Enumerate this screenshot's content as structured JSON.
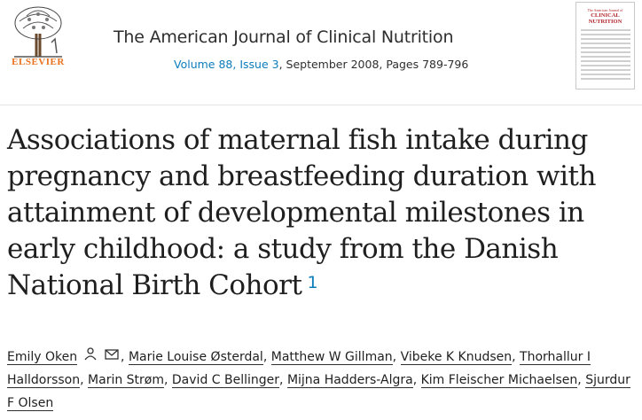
{
  "header": {
    "publisher": "ELSEVIER",
    "journal_title": "The American Journal of Clinical Nutrition",
    "volume_issue_link": "Volume 88, Issue 3",
    "citation_rest": ", September 2008, Pages 789-796",
    "cover": {
      "top_line": "The American Journal of",
      "name": "CLINICAL NUTRITION"
    }
  },
  "article": {
    "title": "Associations of maternal fish intake during pregnancy and breastfeeding duration with attainment of developmental milestones in early childhood: a study from the Danish National Birth Cohort",
    "footnote": "1"
  },
  "authors": [
    "Emily Oken",
    "Marie Louise Østerdal",
    "Matthew W Gillman",
    "Vibeke K Knudsen",
    "Thorhallur I Halldorsson",
    "Marin Strøm",
    "David C Bellinger",
    "Mijna Hadders-Algra",
    "Kim Fleischer Michaelsen",
    "Sjurdur F Olsen"
  ],
  "icons": {
    "author_person": "person-icon",
    "author_email": "envelope-icon"
  },
  "colors": {
    "link": "#0c7dbb",
    "publisher": "#e9711c",
    "text": "#1f1f1f"
  }
}
